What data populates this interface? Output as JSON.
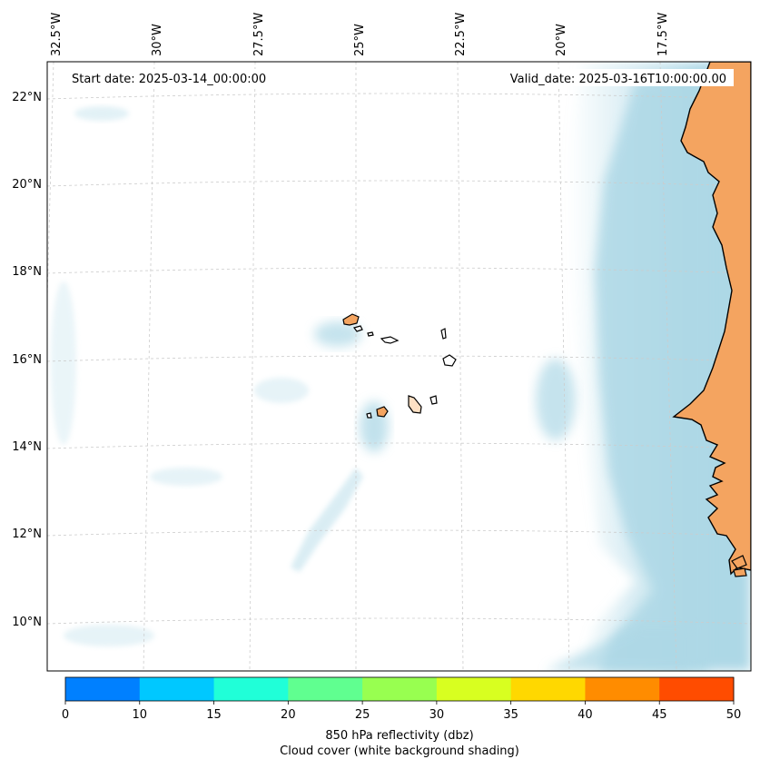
{
  "map": {
    "start_date_label": "Start date: 2025-03-14_00:00:00",
    "valid_date_label": "Valid_date: 2025-03-16T10:00:00.00",
    "lon_labels": [
      "32.5°W",
      "30°W",
      "27.5°W",
      "25°W",
      "22.5°W",
      "20°W",
      "17.5°W"
    ],
    "lat_labels": [
      "22°N",
      "20°N",
      "18°N",
      "16°N",
      "14°N",
      "12°N",
      "10°N"
    ],
    "colors": {
      "land": "#f4a460",
      "cloud": "#add8e6",
      "coastline": "#000000",
      "gridline": "#cccccc"
    }
  },
  "colorbar": {
    "bins": [
      {
        "from": 0,
        "to": 10,
        "color": "#0080ff"
      },
      {
        "from": 10,
        "to": 15,
        "color": "#00c8ff"
      },
      {
        "from": 15,
        "to": 20,
        "color": "#20ffd8"
      },
      {
        "from": 20,
        "to": 25,
        "color": "#60ff90"
      },
      {
        "from": 25,
        "to": 30,
        "color": "#98ff50"
      },
      {
        "from": 30,
        "to": 35,
        "color": "#d8ff20"
      },
      {
        "from": 35,
        "to": 40,
        "color": "#ffd800"
      },
      {
        "from": 40,
        "to": 45,
        "color": "#ff8c00"
      },
      {
        "from": 45,
        "to": 50,
        "color": "#ff4c00"
      }
    ],
    "tick_labels": [
      "0",
      "10",
      "15",
      "20",
      "25",
      "30",
      "35",
      "40",
      "45",
      "50"
    ],
    "label_line1": "850 hPa reflectivity (dbz)",
    "label_line2": "Cloud cover (white background shading)"
  }
}
